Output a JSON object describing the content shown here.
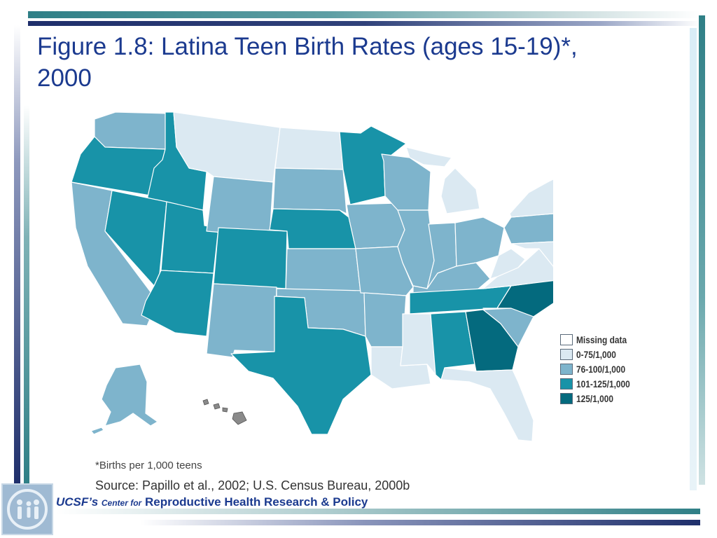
{
  "title": "Figure 1.8: Latina Teen Birth Rates (ages 15-19)*, 2000",
  "legend": [
    {
      "label": "Missing data",
      "color": "#ffffff"
    },
    {
      "label": "0-75/1,000",
      "color": "#dbe9f2"
    },
    {
      "label": "76-100/1,000",
      "color": "#7eb4cc"
    },
    {
      "label": "101-125/1,000",
      "color": "#1893a8"
    },
    {
      "label": "125/1,000",
      "color": "#046a7e"
    }
  ],
  "footnote": "*Births per 1,000 teens",
  "source": "Source: Papillo et al., 2002; U.S. Census Bureau, 2000b",
  "branding": {
    "ucsf": "UCSF’s",
    "center_for": "Center for",
    "name": "Reproductive Health Research & Policy"
  },
  "states": {
    "WA": "76-100/1,000",
    "OR": "101-125/1,000",
    "CA": "76-100/1,000",
    "ID": "101-125/1,000",
    "NV": "101-125/1,000",
    "UT": "101-125/1,000",
    "AZ": "101-125/1,000",
    "MT": "0-75/1,000",
    "WY": "76-100/1,000",
    "CO": "101-125/1,000",
    "NM": "76-100/1,000",
    "ND": "0-75/1,000",
    "SD": "76-100/1,000",
    "NE": "101-125/1,000",
    "KS": "76-100/1,000",
    "OK": "76-100/1,000",
    "TX": "101-125/1,000",
    "MN": "101-125/1,000",
    "IA": "76-100/1,000",
    "MO": "76-100/1,000",
    "AR": "76-100/1,000",
    "LA": "0-75/1,000",
    "WI": "76-100/1,000",
    "IL": "76-100/1,000",
    "MI": "0-75/1,000",
    "IN": "76-100/1,000",
    "OH": "76-100/1,000",
    "KY": "76-100/1,000",
    "TN": "101-125/1,000",
    "MS": "0-75/1,000",
    "AL": "101-125/1,000",
    "GA": "125/1,000",
    "FL": "0-75/1,000",
    "SC": "76-100/1,000",
    "NC": "125/1,000",
    "VA": "0-75/1,000",
    "WV": "0-75/1,000",
    "PA": "76-100/1,000",
    "NY": "0-75/1,000",
    "VT": "0-75/1,000",
    "NH": "0-75/1,000",
    "ME": "0-75/1,000",
    "MA": "76-100/1,000",
    "CT": "76-100/1,000",
    "RI": "76-100/1,000",
    "NJ": "0-75/1,000",
    "DE": "101-125/1,000",
    "MD": "0-75/1,000",
    "AK": "76-100/1,000",
    "HI": "Missing data"
  }
}
